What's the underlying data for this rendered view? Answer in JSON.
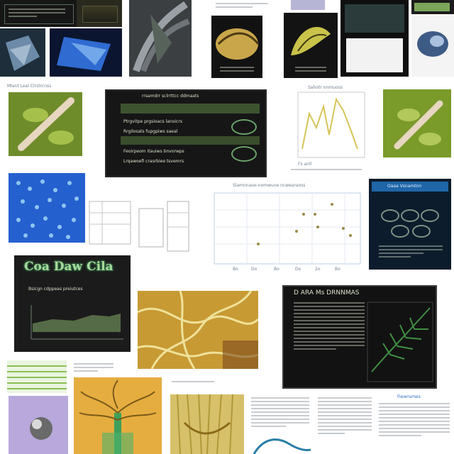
{
  "tiles": {
    "t_leaf_banner": {
      "caption": "Mlant Leal Clrstrcnss"
    },
    "t_dark_panel": {
      "header": "rrsamdrr sclrrttcc ddmaats",
      "rows": [
        "Ptrgvitpe prgsioacs lanoicrs",
        "Rrgilosats fupgpiws saeal",
        "Feoirpeom itauiws bnvorwps",
        "Lrqawoefi crasrbiee tsvemrs"
      ]
    },
    "t_line_chart": {
      "caption": "Sahotr nnmuoss",
      "axis": "Fs anll"
    },
    "t_dark_card": {
      "title": "Oaaa Vsnamtnn"
    },
    "t_scatter": {
      "title": "Slamnnaoe-nomwuve ncwearaoss",
      "xticks": [
        "Bo",
        "Do",
        "Bo",
        "Do",
        "2o",
        "Bo"
      ]
    },
    "t_glow_card": {
      "title": "Coa Daw Cila",
      "sub": "Bsicgn cdppeas preiutces"
    },
    "t_green_fern": {
      "header": "D ARA Ms DRNNMAS"
    },
    "t_doc_list": {
      "header": "Fiewnsmes"
    }
  }
}
